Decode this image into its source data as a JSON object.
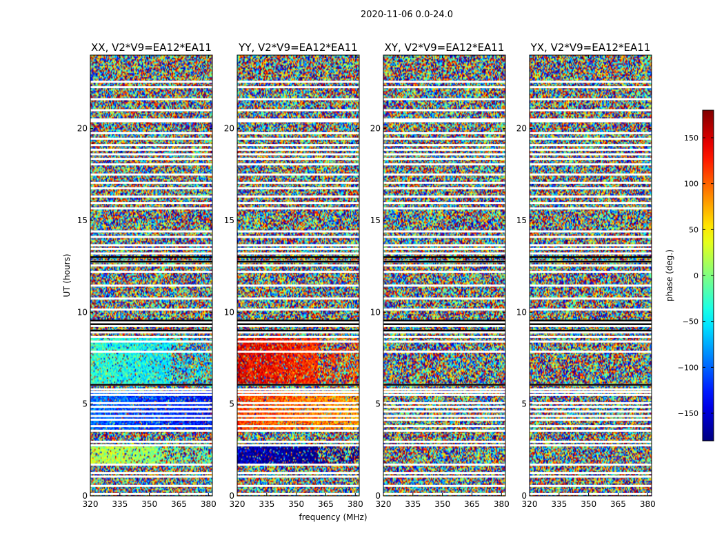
{
  "figure": {
    "suptitle": "2020-11-06 0.0-24.0",
    "xlabel": "frequency (MHz)",
    "ylabel": "UT (hours)",
    "colorbar_label": "phase (deg.)"
  },
  "chart_data": {
    "type": "heatmap",
    "panels": [
      {
        "title": "XX, V2*V9=EA12*EA11",
        "pol": "XX"
      },
      {
        "title": "YY, V2*V9=EA12*EA11",
        "pol": "YY"
      },
      {
        "title": "XY, V2*V9=EA12*EA11",
        "pol": "XY"
      },
      {
        "title": "YX, V2*V9=EA12*EA11",
        "pol": "YX"
      }
    ],
    "x_range": [
      320,
      382
    ],
    "x_ticks": [
      "320",
      "335",
      "350",
      "365",
      "380"
    ],
    "y_range": [
      0,
      24
    ],
    "y_ticks": [
      "0",
      "5",
      "10",
      "15",
      "20"
    ],
    "colorbar": {
      "range": [
        -180,
        180
      ],
      "ticks": [
        "−150",
        "−100",
        "−50",
        "0",
        "50",
        "100",
        "150"
      ],
      "colormap": "jet"
    },
    "blank_rows_hours": [
      0.1,
      0.55,
      1.05,
      1.25,
      1.7,
      2.75,
      2.95,
      3.55,
      3.8,
      4.15,
      4.35,
      4.6,
      4.85,
      5.05,
      5.5,
      5.65,
      5.8,
      6.05,
      7.85,
      8.4,
      8.65,
      8.9,
      9.25,
      9.45,
      10.15,
      10.75,
      11.45,
      12.2,
      12.55,
      12.75,
      13.2,
      13.45,
      13.65,
      14.1,
      14.4,
      15.65,
      15.95,
      16.3,
      16.75,
      17.05,
      17.5,
      18.05,
      18.35,
      18.6,
      18.85,
      19.1,
      19.45,
      19.75,
      20.4,
      20.5,
      21.0,
      21.6,
      22.25,
      22.55
    ],
    "black_rows_hours": [
      6.05,
      9.0,
      9.35,
      9.55,
      12.75,
      13.0
    ],
    "coherent_regions": [
      {
        "pol": "XX",
        "t_start": 1.7,
        "t_end": 2.7,
        "freq_end": 355,
        "phase_deg": 25
      },
      {
        "pol": "XX",
        "t_start": 6.1,
        "t_end": 8.6,
        "freq_end": 361,
        "phase_deg": -25
      },
      {
        "pol": "XX",
        "t_start": 3.6,
        "t_end": 5.7,
        "freq_end": 382,
        "phase_deg": -95
      },
      {
        "pol": "YY",
        "t_start": 1.7,
        "t_end": 2.7,
        "freq_end": 361,
        "phase_deg": -160
      },
      {
        "pol": "YY",
        "t_start": 6.1,
        "t_end": 8.6,
        "freq_end": 361,
        "phase_deg": 145
      },
      {
        "pol": "YY",
        "t_start": 3.6,
        "t_end": 5.7,
        "freq_end": 382,
        "phase_deg": 115
      }
    ]
  }
}
